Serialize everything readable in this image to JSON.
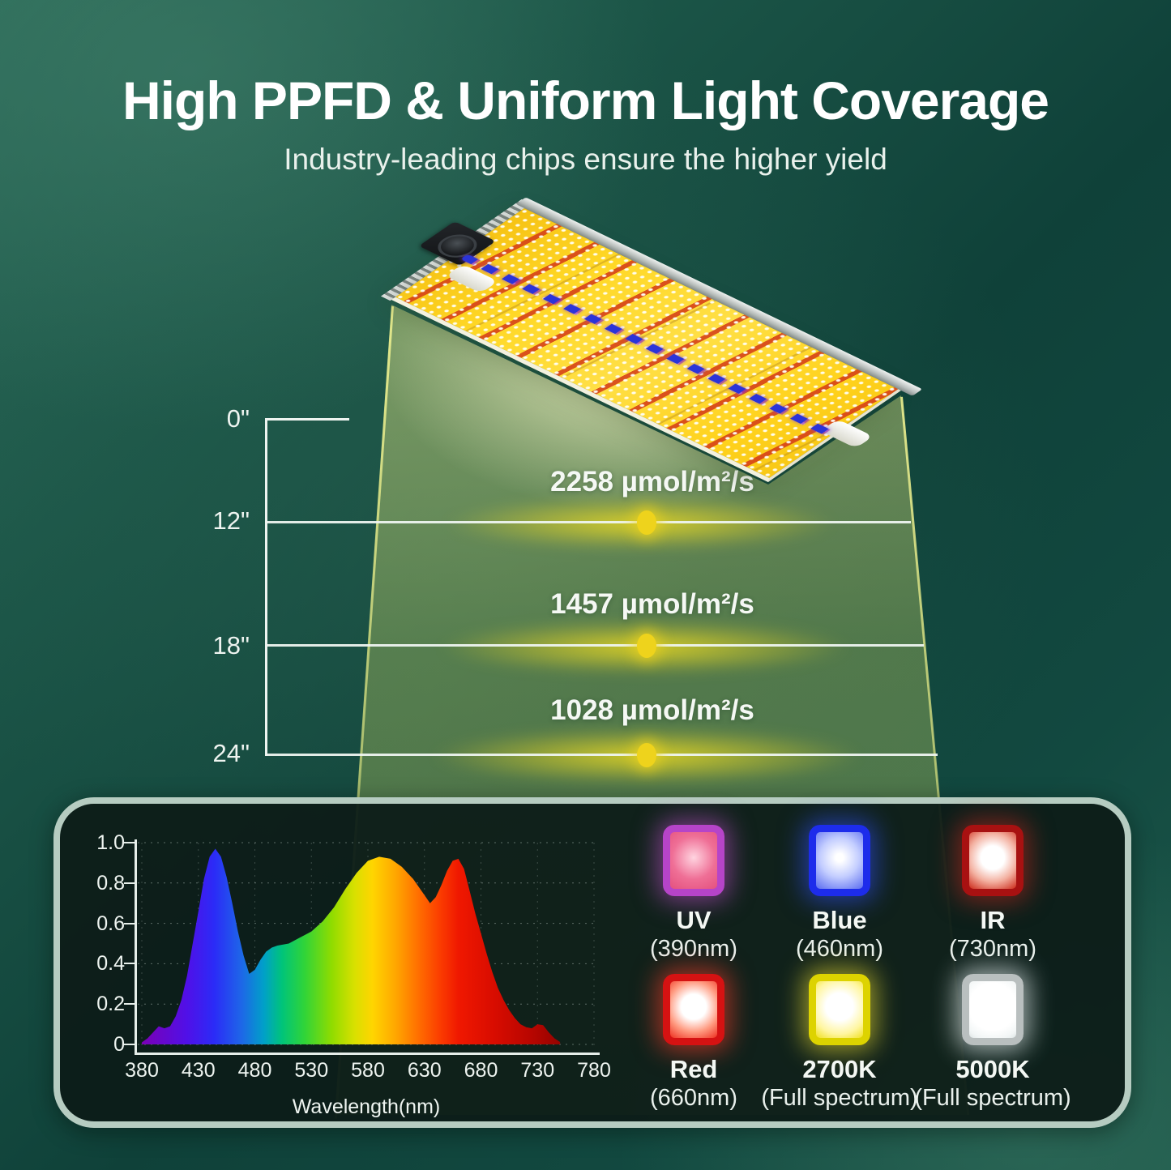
{
  "header": {
    "title": "High PPFD & Uniform Light Coverage",
    "subtitle": "Industry-leading chips ensure the higher yield"
  },
  "ruler": {
    "labels": [
      "0\"",
      "12\"",
      "18\"",
      "24\""
    ]
  },
  "ppfd": {
    "unit": "µmol/m²/s",
    "rows": [
      {
        "distance": "12\"",
        "value": "2258 µmol/m²/s"
      },
      {
        "distance": "18\"",
        "value": "1457 µmol/m²/s"
      },
      {
        "distance": "24\"",
        "value": "1028 µmol/m²/s"
      }
    ]
  },
  "chips": [
    {
      "name": "UV",
      "sub": "(390nm)",
      "chip_color": "#b644c8"
    },
    {
      "name": "Blue",
      "sub": "(460nm)",
      "chip_color": "#1d2ceb"
    },
    {
      "name": "IR",
      "sub": "(730nm)",
      "chip_color": "#a81111"
    },
    {
      "name": "Red",
      "sub": "(660nm)",
      "chip_color": "#d51212"
    },
    {
      "name": "2700K",
      "sub": "(Full spectrum)",
      "chip_color": "#ddd300"
    },
    {
      "name": "5000K",
      "sub": "(Full spectrum)",
      "chip_color": "#b9bfbf"
    }
  ],
  "colors": {
    "background_light": "#2c6b59",
    "background_deep": "#0f4139",
    "beam_yellow": "#e0e488",
    "line_white": "#eef4f0",
    "dot_yellow": "#eed31c",
    "panel_border": "#b6ccc1",
    "panel_bg": "#0d1c18",
    "title_white": "#ffffff"
  },
  "chart_data": {
    "type": "area",
    "title": "",
    "xlabel": "Wavelength(nm)",
    "ylabel": "",
    "xlim": [
      380,
      780
    ],
    "ylim": [
      0,
      1.0
    ],
    "x_ticks": [
      380,
      430,
      480,
      530,
      580,
      630,
      680,
      730,
      780
    ],
    "y_ticks": [
      0,
      0.2,
      0.4,
      0.6,
      0.8,
      1.0
    ],
    "grid": true,
    "legend_position": "none",
    "points": [
      [
        380,
        0.01
      ],
      [
        385,
        0.03
      ],
      [
        390,
        0.06
      ],
      [
        395,
        0.09
      ],
      [
        400,
        0.08
      ],
      [
        405,
        0.09
      ],
      [
        410,
        0.14
      ],
      [
        415,
        0.22
      ],
      [
        420,
        0.34
      ],
      [
        425,
        0.5
      ],
      [
        430,
        0.66
      ],
      [
        435,
        0.82
      ],
      [
        440,
        0.93
      ],
      [
        445,
        0.97
      ],
      [
        450,
        0.93
      ],
      [
        455,
        0.83
      ],
      [
        460,
        0.7
      ],
      [
        465,
        0.56
      ],
      [
        470,
        0.44
      ],
      [
        475,
        0.35
      ],
      [
        480,
        0.37
      ],
      [
        485,
        0.42
      ],
      [
        490,
        0.46
      ],
      [
        495,
        0.48
      ],
      [
        500,
        0.49
      ],
      [
        510,
        0.5
      ],
      [
        520,
        0.53
      ],
      [
        530,
        0.56
      ],
      [
        540,
        0.61
      ],
      [
        550,
        0.68
      ],
      [
        560,
        0.77
      ],
      [
        570,
        0.85
      ],
      [
        580,
        0.91
      ],
      [
        590,
        0.93
      ],
      [
        600,
        0.92
      ],
      [
        610,
        0.88
      ],
      [
        620,
        0.82
      ],
      [
        630,
        0.74
      ],
      [
        635,
        0.7
      ],
      [
        640,
        0.73
      ],
      [
        645,
        0.79
      ],
      [
        650,
        0.86
      ],
      [
        655,
        0.91
      ],
      [
        660,
        0.92
      ],
      [
        665,
        0.87
      ],
      [
        670,
        0.76
      ],
      [
        675,
        0.65
      ],
      [
        680,
        0.55
      ],
      [
        685,
        0.45
      ],
      [
        690,
        0.36
      ],
      [
        695,
        0.28
      ],
      [
        700,
        0.22
      ],
      [
        705,
        0.17
      ],
      [
        710,
        0.13
      ],
      [
        715,
        0.1
      ],
      [
        720,
        0.085
      ],
      [
        725,
        0.08
      ],
      [
        730,
        0.1
      ],
      [
        735,
        0.095
      ],
      [
        740,
        0.06
      ],
      [
        745,
        0.03
      ],
      [
        750,
        0.012
      ]
    ],
    "gradient_stops": [
      [
        380,
        "#7a00b4"
      ],
      [
        420,
        "#5010e8"
      ],
      [
        444,
        "#2b2bf7"
      ],
      [
        468,
        "#1e66e8"
      ],
      [
        488,
        "#00a0c8"
      ],
      [
        504,
        "#00c47a"
      ],
      [
        524,
        "#30d438"
      ],
      [
        548,
        "#90dc00"
      ],
      [
        568,
        "#d8e000"
      ],
      [
        584,
        "#ffd500"
      ],
      [
        604,
        "#ffa800"
      ],
      [
        624,
        "#ff7000"
      ],
      [
        644,
        "#fb3c00"
      ],
      [
        660,
        "#f01800"
      ],
      [
        692,
        "#d80c00"
      ],
      [
        724,
        "#b80600"
      ],
      [
        752,
        "#920300"
      ]
    ]
  }
}
